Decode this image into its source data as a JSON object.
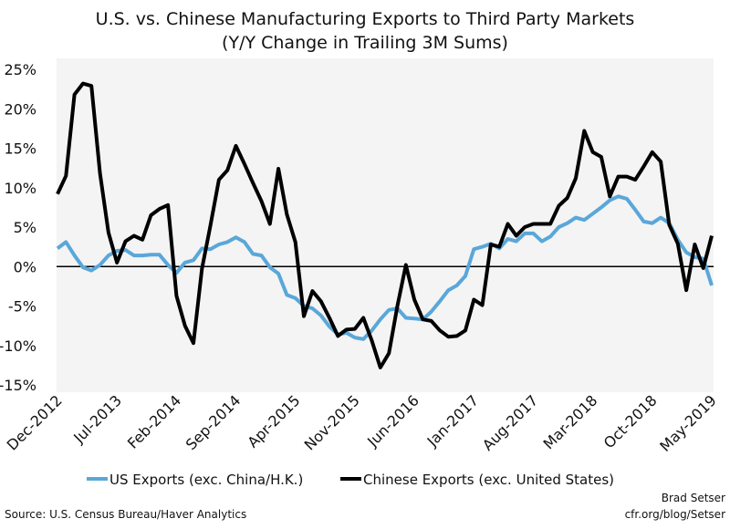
{
  "chart_data": {
    "type": "line",
    "title": "U.S. vs. Chinese Manufacturing Exports to Third Party Markets",
    "subtitle": "(Y/Y Change in Trailing 3M Sums)",
    "xlabel": "",
    "ylabel": "",
    "x_start": "Dec-2012",
    "x_end": "May-2019",
    "x_tick_labels": [
      "Dec-2012",
      "Jul-2013",
      "Feb-2014",
      "Sep-2014",
      "Apr-2015",
      "Nov-2015",
      "Jun-2016",
      "Jan-2017",
      "Aug-2017",
      "Mar-2018",
      "Oct-2018",
      "May-2019"
    ],
    "y_tick_labels": [
      "25%",
      "20%",
      "15%",
      "10%",
      "5%",
      "0%",
      "-5%",
      "-10%",
      "-15%"
    ],
    "ylim": [
      -15,
      25
    ],
    "y_unit": "%",
    "grid": false,
    "legend_position": "bottom",
    "series": [
      {
        "name": "US Exports (exc. China/H.K.)",
        "color": "#5aa7d9",
        "values": [
          2.3,
          3.1,
          1.4,
          -0.1,
          -0.5,
          0.2,
          1.4,
          2.0,
          2.1,
          1.4,
          1.4,
          1.5,
          1.5,
          0.2,
          -0.8,
          0.5,
          0.8,
          2.3,
          2.2,
          2.8,
          3.1,
          3.7,
          3.1,
          1.6,
          1.4,
          -0.1,
          -0.9,
          -3.6,
          -4.0,
          -5.0,
          -5.3,
          -6.2,
          -7.6,
          -8.6,
          -8.4,
          -9.0,
          -9.2,
          -8.1,
          -6.7,
          -5.5,
          -5.3,
          -6.5,
          -6.6,
          -6.7,
          -5.7,
          -4.4,
          -3.0,
          -2.4,
          -1.2,
          2.2,
          2.5,
          2.9,
          2.3,
          3.5,
          3.2,
          4.2,
          4.2,
          3.2,
          3.8,
          5.0,
          5.5,
          6.2,
          5.9,
          6.7,
          7.5,
          8.4,
          8.9,
          8.6,
          7.2,
          5.7,
          5.5,
          6.2,
          5.5,
          3.4,
          1.8,
          1.2,
          1.0,
          -2.4
        ]
      },
      {
        "name": "Chinese Exports (exc. United States)",
        "color": "#000000",
        "values": [
          9.2,
          11.5,
          21.8,
          23.2,
          22.9,
          11.8,
          4.3,
          0.5,
          3.2,
          3.9,
          3.4,
          6.5,
          7.3,
          7.8,
          -3.7,
          -7.5,
          -9.7,
          -0.3,
          5.2,
          11.0,
          12.2,
          15.3,
          13.0,
          10.6,
          8.3,
          5.4,
          12.4,
          6.6,
          3.1,
          -6.3,
          -3.1,
          -4.4,
          -6.5,
          -8.8,
          -8.0,
          -7.9,
          -6.5,
          -9.4,
          -12.8,
          -11.0,
          -5.0,
          0.2,
          -4.2,
          -6.7,
          -6.9,
          -8.1,
          -8.9,
          -8.8,
          -8.1,
          -4.2,
          -4.9,
          2.8,
          2.5,
          5.4,
          3.9,
          5.0,
          5.4,
          5.4,
          5.4,
          7.7,
          8.7,
          11.2,
          17.2,
          14.5,
          13.9,
          8.9,
          11.4,
          11.4,
          11.0,
          12.7,
          14.5,
          13.3,
          5.3,
          2.9,
          -3.0,
          2.8,
          -0.2,
          3.9
        ]
      }
    ]
  },
  "footer": {
    "source": "Source: U.S. Census Bureau/Haver Analytics",
    "author": "Brad Setser",
    "website": "cfr.org/blog/Setser"
  }
}
